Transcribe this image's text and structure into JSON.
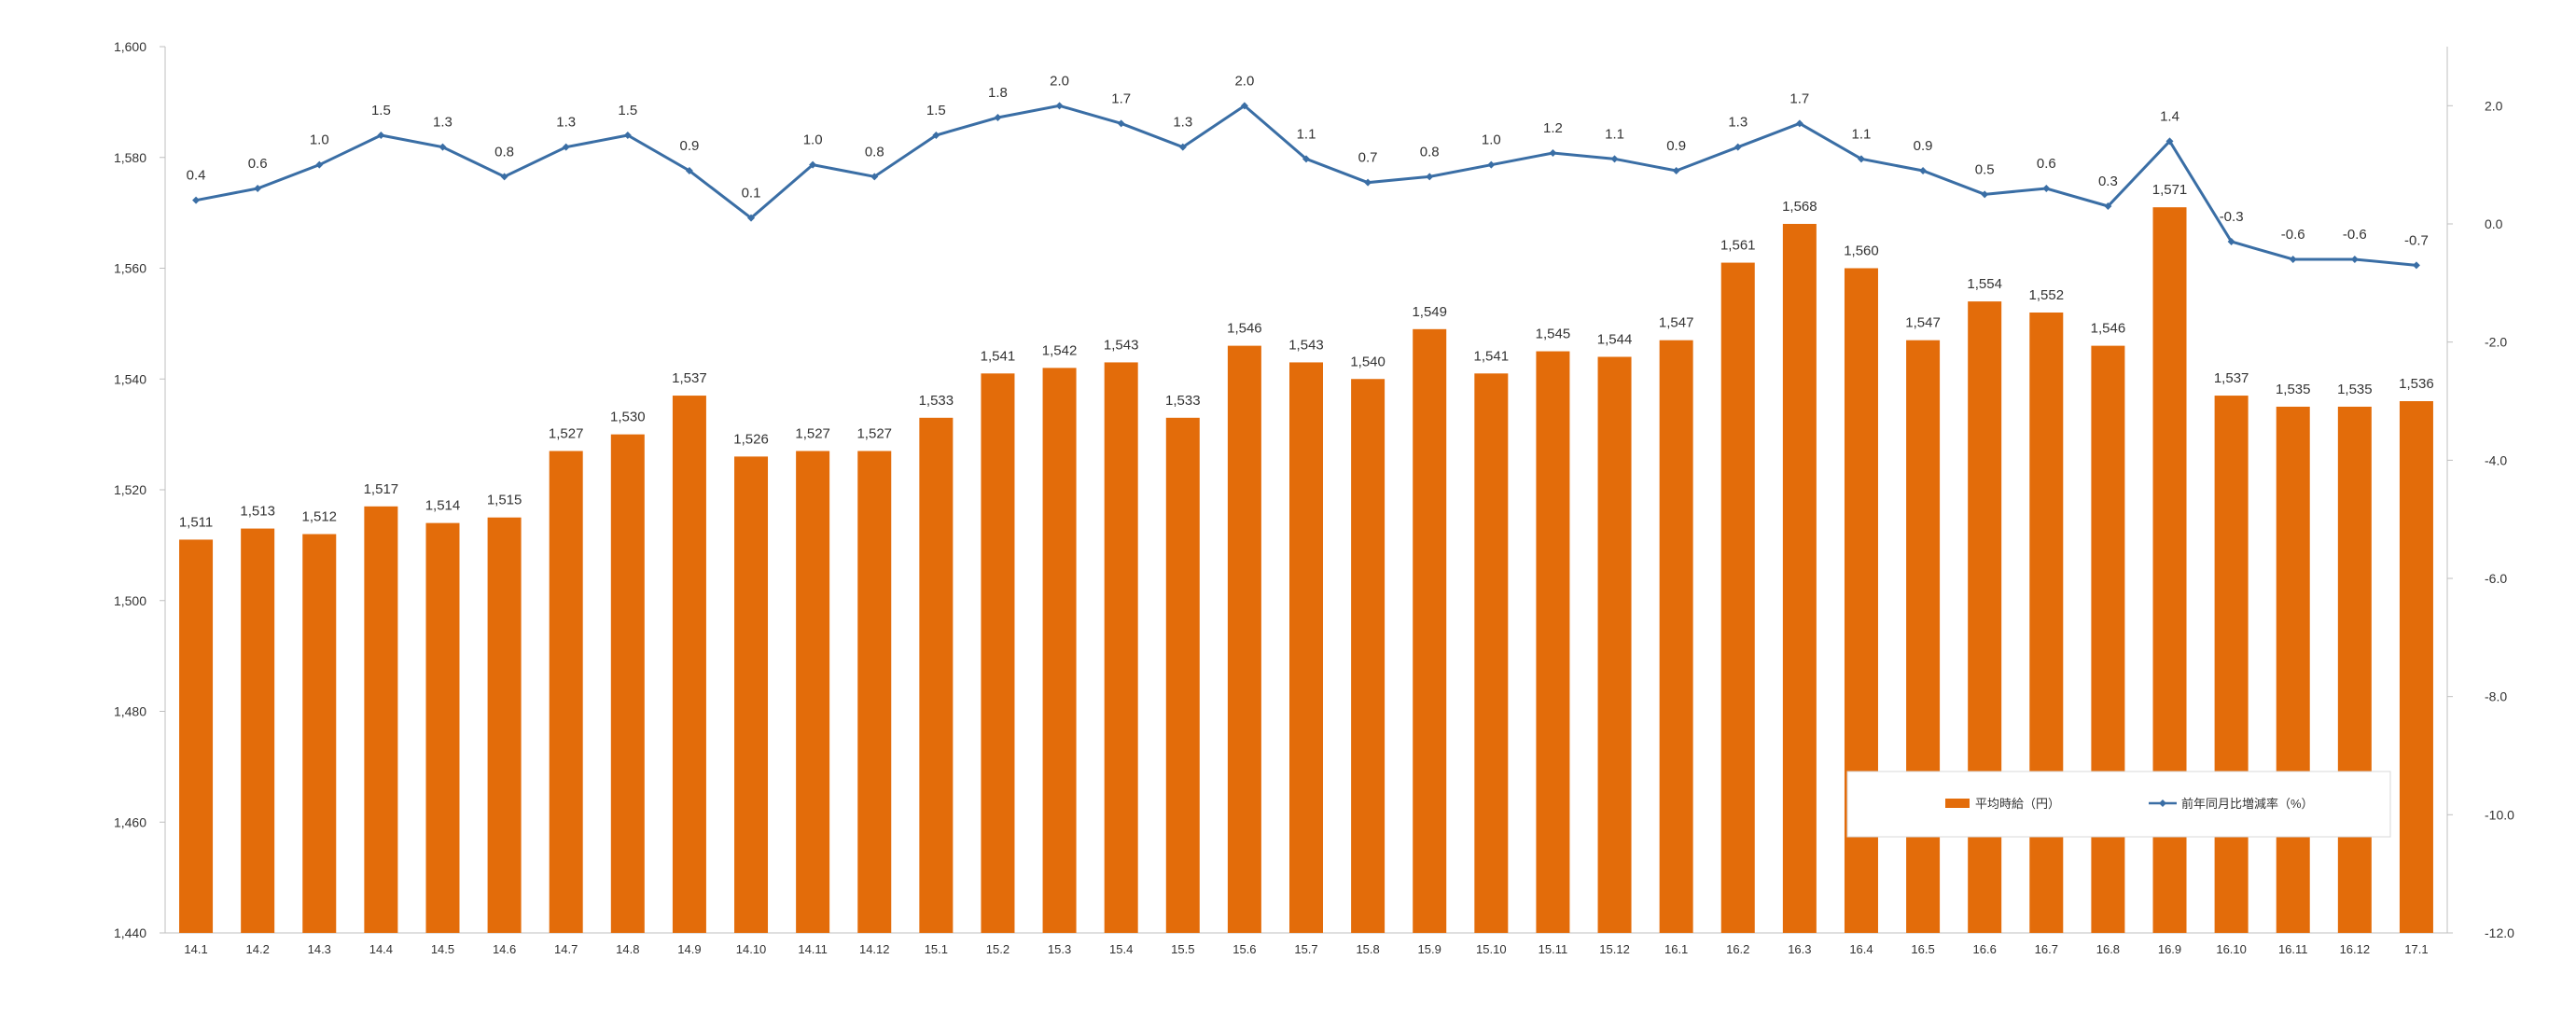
{
  "chart_data": {
    "type": "bar",
    "categories": [
      "14.1",
      "14.2",
      "14.3",
      "14.4",
      "14.5",
      "14.6",
      "14.7",
      "14.8",
      "14.9",
      "14.10",
      "14.11",
      "14.12",
      "15.1",
      "15.2",
      "15.3",
      "15.4",
      "15.5",
      "15.6",
      "15.7",
      "15.8",
      "15.9",
      "15.10",
      "15.11",
      "15.12",
      "16.1",
      "16.2",
      "16.3",
      "16.4",
      "16.5",
      "16.6",
      "16.7",
      "16.8",
      "16.9",
      "16.10",
      "16.11",
      "16.12",
      "17.1"
    ],
    "series": [
      {
        "name": "平均時給（円）",
        "type": "bar",
        "axis": "left",
        "color": "#E36C0A",
        "values": [
          1511,
          1513,
          1512,
          1517,
          1514,
          1515,
          1527,
          1530,
          1537,
          1526,
          1527,
          1527,
          1533,
          1541,
          1542,
          1543,
          1533,
          1546,
          1543,
          1540,
          1549,
          1541,
          1545,
          1544,
          1547,
          1561,
          1568,
          1560,
          1547,
          1554,
          1552,
          1546,
          1571,
          1537,
          1535,
          1535,
          1536
        ],
        "labels": [
          "1,511",
          "1,513",
          "1,512",
          "1,517",
          "1,514",
          "1,515",
          "1,527",
          "1,530",
          "1,537",
          "1,526",
          "1,527",
          "1,527",
          "1,533",
          "1,541",
          "1,542",
          "1,543",
          "1,533",
          "1,546",
          "1,543",
          "1,540",
          "1,549",
          "1,541",
          "1,545",
          "1,544",
          "1,547",
          "1,561",
          "1,568",
          "1,560",
          "1,547",
          "1,554",
          "1,552",
          "1,546",
          "1,571",
          "1,537",
          "1,535",
          "1,535",
          "1,536"
        ]
      },
      {
        "name": "前年同月比増減率（%）",
        "type": "line",
        "axis": "right",
        "color": "#3A6EA5",
        "values": [
          0.4,
          0.6,
          1.0,
          1.5,
          1.3,
          0.8,
          1.3,
          1.5,
          0.9,
          0.1,
          1.0,
          0.8,
          1.5,
          1.8,
          2.0,
          1.7,
          1.3,
          2.0,
          1.1,
          0.7,
          0.8,
          1.0,
          1.2,
          1.1,
          0.9,
          1.3,
          1.7,
          1.1,
          0.9,
          0.5,
          0.6,
          0.3,
          1.4,
          -0.3,
          -0.6,
          -0.6,
          -0.7
        ],
        "labels": [
          "0.4",
          "0.6",
          "1.0",
          "1.5",
          "1.3",
          "0.8",
          "1.3",
          "1.5",
          "0.9",
          "0.1",
          "1.0",
          "0.8",
          "1.5",
          "1.8",
          "2.0",
          "1.7",
          "1.3",
          "2.0",
          "1.1",
          "0.7",
          "0.8",
          "1.0",
          "1.2",
          "1.1",
          "0.9",
          "1.3",
          "1.7",
          "1.1",
          "0.9",
          "0.5",
          "0.6",
          "0.3",
          "1.4",
          "-0.3",
          "-0.6",
          "-0.6",
          "-0.7"
        ]
      }
    ],
    "left_axis": {
      "ylim": [
        1440,
        1600
      ],
      "ticks": [
        1440,
        1460,
        1480,
        1500,
        1520,
        1540,
        1560,
        1580,
        1600
      ],
      "tick_labels": [
        "1,440",
        "1,460",
        "1,480",
        "1,500",
        "1,520",
        "1,540",
        "1,560",
        "1,580",
        "1,600"
      ]
    },
    "right_axis": {
      "ylim": [
        -12,
        3
      ],
      "ticks": [
        -12,
        -10,
        -8,
        -6,
        -4,
        -2,
        0,
        2
      ],
      "tick_labels": [
        "-12.0",
        "-10.0",
        "-8.0",
        "-6.0",
        "-4.0",
        "-2.0",
        "0.0",
        "2.0"
      ]
    },
    "grid": false,
    "legend_position": "bottom-right",
    "title": "",
    "xlabel": "",
    "ylabel": ""
  }
}
